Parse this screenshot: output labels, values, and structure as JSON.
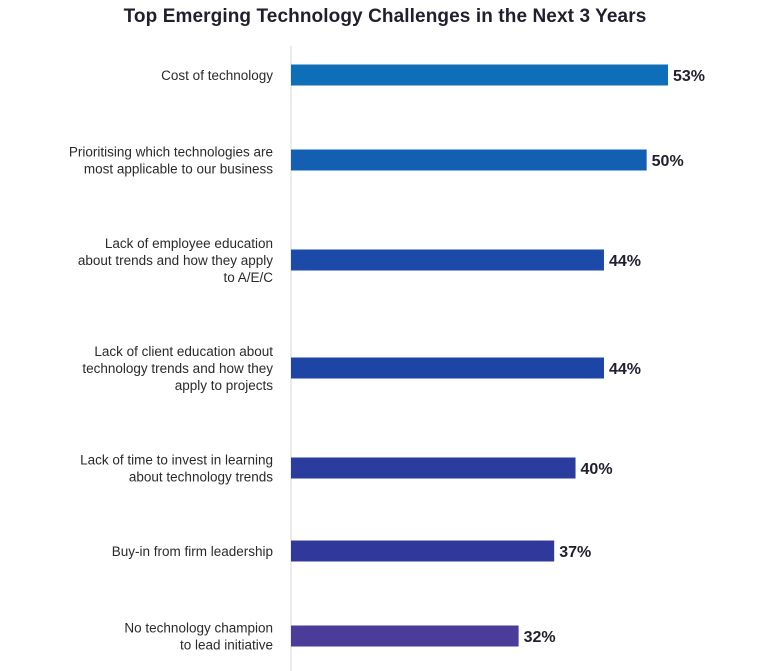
{
  "chart_data": {
    "type": "bar",
    "orientation": "horizontal",
    "title": "Top Emerging Technology Challenges in the Next 3 Years",
    "categories": [
      [
        "Cost of technology"
      ],
      [
        "Prioritising which technologies are",
        "most applicable to our business"
      ],
      [
        "Lack of employee education",
        "about trends and how they apply",
        "to A/E/C"
      ],
      [
        "Lack of client education about",
        "technology trends and how they",
        "apply to projects"
      ],
      [
        "Lack of time to invest in learning",
        "about technology trends"
      ],
      [
        "Buy-in from firm leadership"
      ],
      [
        "No technology champion",
        "to lead initiative"
      ]
    ],
    "values": [
      53,
      50,
      44,
      44,
      40,
      37,
      32
    ],
    "value_labels": [
      "53%",
      "50%",
      "44%",
      "44%",
      "40%",
      "37%",
      "32%"
    ],
    "unit": "%",
    "xlim": [
      0,
      53
    ],
    "grid": false,
    "legend": "none",
    "colors": [
      "#0f6eb8",
      "#1360b2",
      "#1b4aa8",
      "#1d45a5",
      "#2a3d9e",
      "#30399b",
      "#4b3c9a"
    ]
  }
}
